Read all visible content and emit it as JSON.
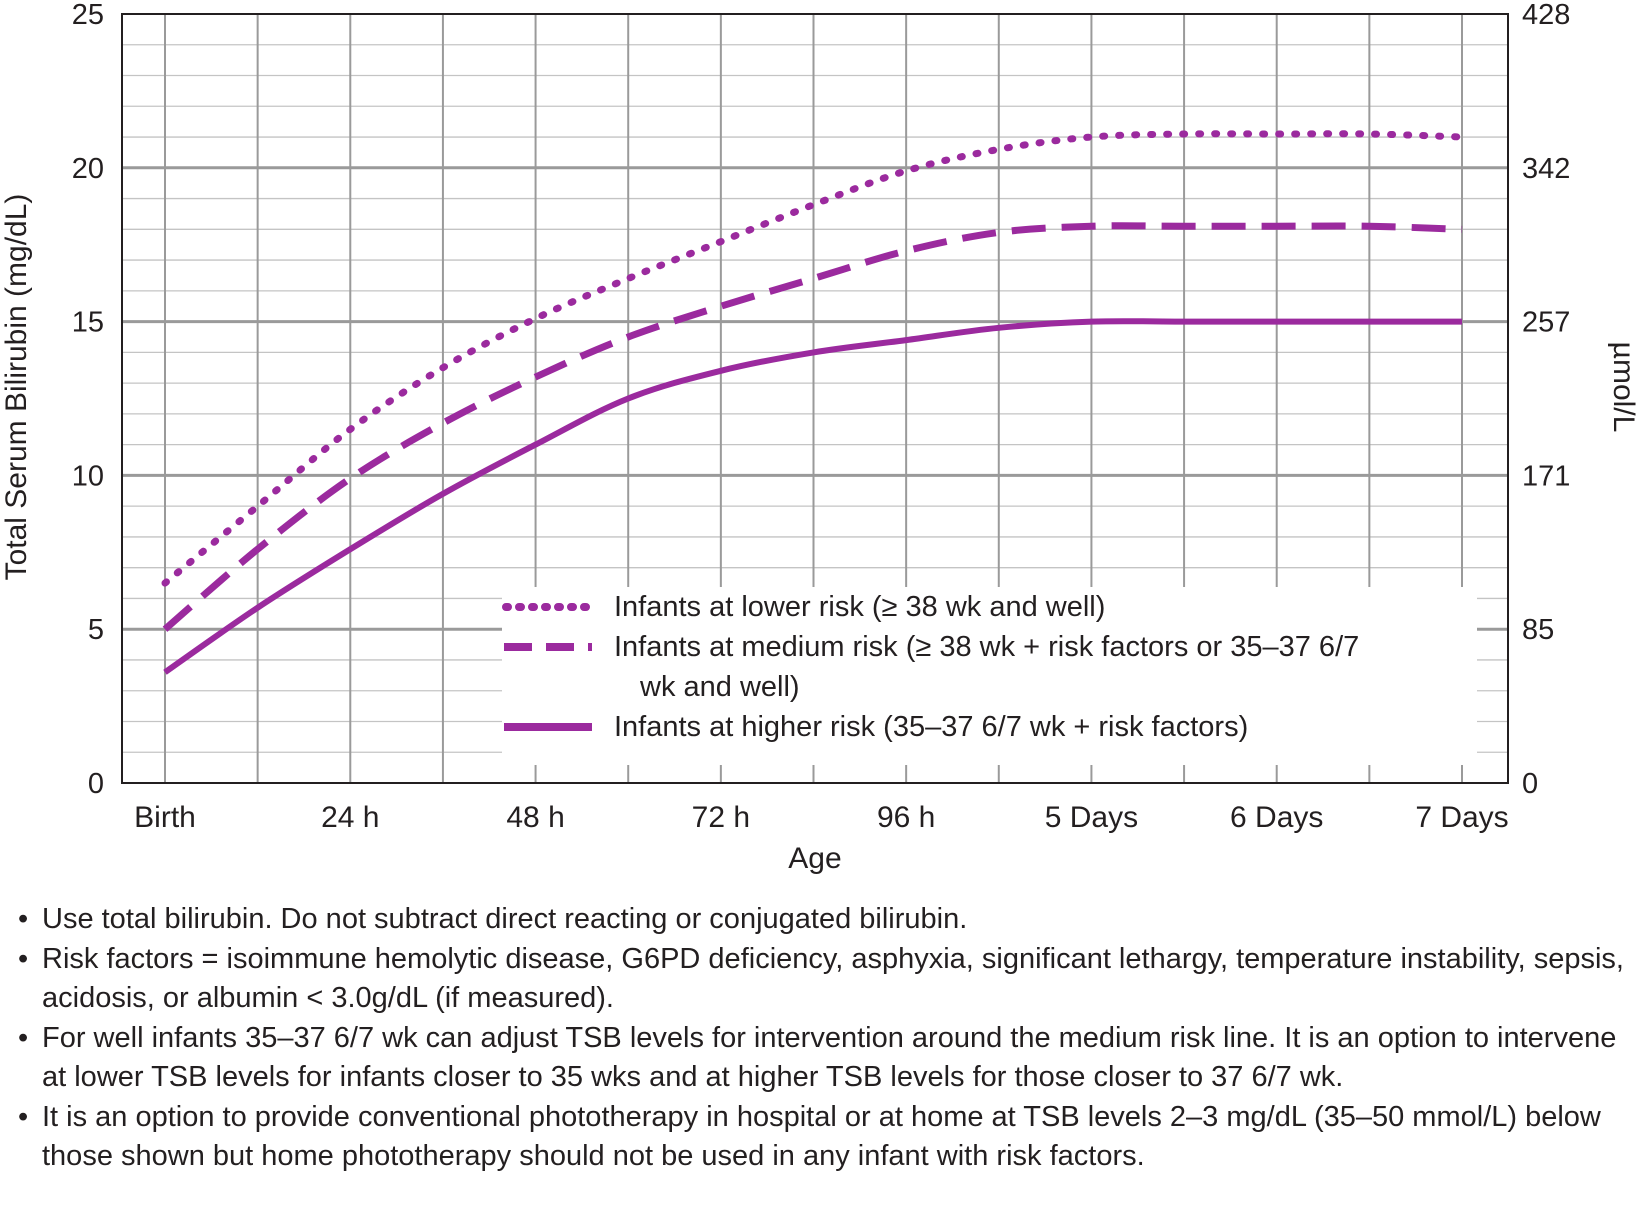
{
  "chart_data": {
    "type": "line",
    "title": "",
    "xlabel": "Age",
    "ylabel": "Total Serum Bilirubin (mg/dL)",
    "y2label": "µmol/L",
    "ylim": [
      0,
      25
    ],
    "xlim": [
      0,
      168
    ],
    "grid": true,
    "x_ticks": [
      {
        "x": 0,
        "label": "Birth"
      },
      {
        "x": 24,
        "label": "24 h"
      },
      {
        "x": 48,
        "label": "48 h"
      },
      {
        "x": 72,
        "label": "72 h"
      },
      {
        "x": 96,
        "label": "96 h"
      },
      {
        "x": 120,
        "label": "5 Days"
      },
      {
        "x": 144,
        "label": "6 Days"
      },
      {
        "x": 168,
        "label": "7 Days"
      }
    ],
    "y_ticks": [
      0,
      5,
      10,
      15,
      20,
      25
    ],
    "y2_ticks": [
      {
        "y": 0,
        "label": "0"
      },
      {
        "y": 5,
        "label": "85"
      },
      {
        "y": 10,
        "label": "171"
      },
      {
        "y": 15,
        "label": "257"
      },
      {
        "y": 20,
        "label": "342"
      },
      {
        "y": 25,
        "label": "428"
      }
    ],
    "legend_position": "lower-right",
    "series": [
      {
        "name": "Infants at lower risk (≥ 38 wk and well)",
        "style": "dotted",
        "color": "#9b2a9e",
        "x": [
          0,
          12,
          24,
          36,
          48,
          60,
          72,
          84,
          96,
          108,
          120,
          132,
          144,
          156,
          168
        ],
        "y": [
          6.5,
          9.0,
          11.5,
          13.5,
          15.1,
          16.4,
          17.6,
          18.8,
          19.9,
          20.6,
          21.0,
          21.1,
          21.1,
          21.1,
          21.0
        ]
      },
      {
        "name": "Infants at medium risk (≥ 38 wk + risk factors or 35–37 6/7 wk and well)",
        "style": "dashed",
        "color": "#9b2a9e",
        "x": [
          0,
          12,
          24,
          36,
          48,
          60,
          72,
          84,
          96,
          108,
          120,
          132,
          144,
          156,
          168
        ],
        "y": [
          5.0,
          7.6,
          9.9,
          11.7,
          13.2,
          14.5,
          15.5,
          16.4,
          17.3,
          17.9,
          18.1,
          18.1,
          18.1,
          18.1,
          18.0
        ]
      },
      {
        "name": "Infants at higher risk (35–37 6/7 wk + risk factors)",
        "style": "solid",
        "color": "#9b2a9e",
        "x": [
          0,
          12,
          24,
          36,
          48,
          60,
          72,
          84,
          96,
          108,
          120,
          132,
          144,
          156,
          168
        ],
        "y": [
          3.6,
          5.7,
          7.6,
          9.4,
          11.0,
          12.5,
          13.4,
          14.0,
          14.4,
          14.8,
          15.0,
          15.0,
          15.0,
          15.0,
          15.0
        ]
      }
    ]
  },
  "legend": {
    "lower": "Infants at lower risk (≥ 38 wk and well)",
    "medium_line1": "Infants at medium risk (≥ 38 wk + risk factors or 35–37 6/7",
    "medium_line2": "wk and well)",
    "higher": "Infants at higher risk (35–37 6/7 wk + risk factors)"
  },
  "notes": [
    "Use total bilirubin. Do not subtract direct reacting or conjugated bilirubin.",
    "Risk factors = isoimmune hemolytic disease, G6PD deficiency, asphyxia, significant lethargy, temperature instability, sepsis, acidosis, or albumin < 3.0g/dL (if measured).",
    "For well infants 35–37 6/7 wk can adjust TSB levels for intervention around the medium risk line. It is an option to intervene at lower TSB levels for infants closer to 35 wks and at higher TSB levels for those closer to 37 6/7 wk.",
    "It is an option to provide conventional phototherapy in hospital or at home at TSB levels 2–3 mg/dL (35–50 mmol/L) below those shown but home phototherapy should not be used in any infant with risk factors."
  ],
  "colors": {
    "series": "#9b2a9e",
    "major_grid": "#9a9a9a",
    "minor_grid": "#c4c4c4",
    "axis": "#231f20"
  }
}
